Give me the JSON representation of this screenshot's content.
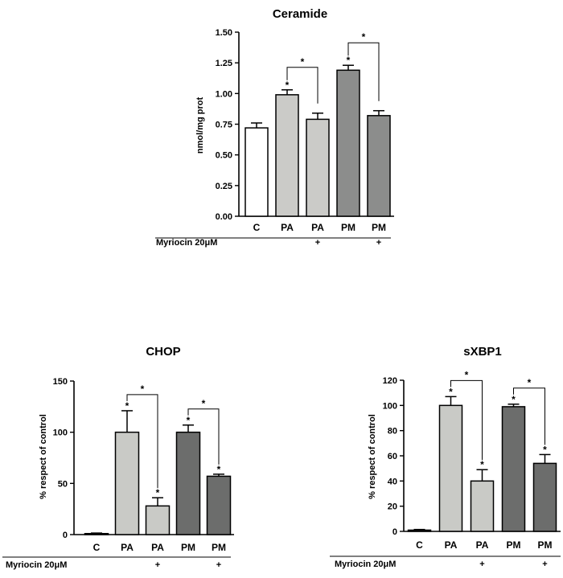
{
  "chart_data": [
    {
      "id": "ceramide",
      "type": "bar",
      "title": "Ceramide",
      "ylabel": "nmol/mg prot",
      "xlabel": "",
      "ylim": [
        0,
        1.5
      ],
      "yticks": [
        "0.00",
        "0.25",
        "0.50",
        "0.75",
        "1.00",
        "1.25",
        "1.50"
      ],
      "categories": [
        "C",
        "PA",
        "PA",
        "PM",
        "PM"
      ],
      "values": [
        0.72,
        0.99,
        0.79,
        1.19,
        0.82
      ],
      "errors": [
        0.04,
        0.04,
        0.05,
        0.04,
        0.04
      ],
      "fill_colors": [
        "#ffffff",
        "#cbcbc8",
        "#cbcbc8",
        "#8c8d8c",
        "#8c8d8c"
      ],
      "significance_marks": [
        "",
        "*",
        "",
        "*",
        ""
      ],
      "brackets": [
        {
          "from": 1,
          "to": 2,
          "label": "*"
        },
        {
          "from": 3,
          "to": 4,
          "label": "*"
        }
      ],
      "treatment_label": "Myriocin 20μM",
      "treatment_marks": [
        "",
        "",
        "+",
        "",
        "+"
      ]
    },
    {
      "id": "chop",
      "type": "bar",
      "title": "CHOP",
      "ylabel": "% respect of control",
      "xlabel": "",
      "ylim": [
        0,
        150
      ],
      "yticks": [
        "0",
        "50",
        "100",
        "150"
      ],
      "categories": [
        "C",
        "PA",
        "PA",
        "PM",
        "PM"
      ],
      "values": [
        1,
        100,
        28,
        100,
        57
      ],
      "errors": [
        0.5,
        21,
        8,
        7,
        2
      ],
      "fill_colors": [
        "#c9cac6",
        "#c9cac6",
        "#c9cac6",
        "#6c6d6c",
        "#6c6d6c"
      ],
      "significance_marks": [
        "",
        "*",
        "*",
        "*",
        "*"
      ],
      "brackets": [
        {
          "from": 1,
          "to": 2,
          "label": "*"
        },
        {
          "from": 3,
          "to": 4,
          "label": "*"
        }
      ],
      "treatment_label": "Myriocin 20μM",
      "treatment_marks": [
        "",
        "",
        "+",
        "",
        "+"
      ]
    },
    {
      "id": "sxbp1",
      "type": "bar",
      "title": "sXBP1",
      "ylabel": "% respect of control",
      "xlabel": "",
      "ylim": [
        0,
        120
      ],
      "yticks": [
        "0",
        "20",
        "40",
        "60",
        "80",
        "100",
        "120"
      ],
      "categories": [
        "C",
        "PA",
        "PA",
        "PM",
        "PM"
      ],
      "values": [
        1,
        100,
        40,
        99,
        54
      ],
      "errors": [
        0.5,
        7,
        9,
        2,
        7
      ],
      "fill_colors": [
        "#c9cac6",
        "#c9cac6",
        "#c9cac6",
        "#6c6d6c",
        "#6c6d6c"
      ],
      "significance_marks": [
        "",
        "*",
        "*",
        "*",
        "*"
      ],
      "brackets": [
        {
          "from": 1,
          "to": 2,
          "label": "*"
        },
        {
          "from": 3,
          "to": 4,
          "label": "*"
        }
      ],
      "treatment_label": "Myriocin 20μM",
      "treatment_marks": [
        "",
        "",
        "+",
        "",
        "+"
      ]
    }
  ]
}
